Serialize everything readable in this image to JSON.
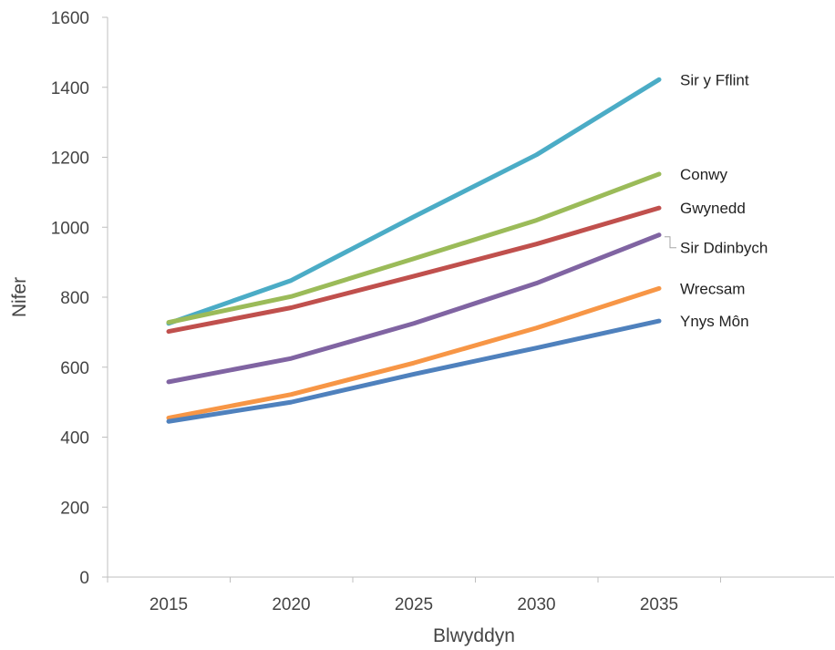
{
  "chart_data": {
    "type": "line",
    "title": "",
    "xlabel": "Blwyddyn",
    "ylabel": "Nifer",
    "x": [
      2015,
      2020,
      2025,
      2030,
      2035
    ],
    "x_ticks": [
      "2015",
      "2020",
      "2025",
      "2030",
      "2035"
    ],
    "y_ticks": [
      "0",
      "200",
      "400",
      "600",
      "800",
      "1000",
      "1200",
      "1400",
      "1600"
    ],
    "ylim": [
      0,
      1600
    ],
    "grid": false,
    "legend": "inline labels at right end of lines",
    "series": [
      {
        "name": "Sir y Fflint",
        "color": "#4BACC6",
        "values": [
          725,
          848,
          1030,
          1207,
          1422
        ]
      },
      {
        "name": "Conwy",
        "color": "#9BBB59",
        "values": [
          728,
          802,
          910,
          1020,
          1152
        ]
      },
      {
        "name": "Gwynedd",
        "color": "#C0504D",
        "values": [
          702,
          770,
          860,
          952,
          1055
        ]
      },
      {
        "name": "Sir Ddinbych",
        "color": "#8064A2",
        "values": [
          558,
          625,
          725,
          840,
          978
        ]
      },
      {
        "name": "Wrecsam",
        "color": "#F79646",
        "values": [
          455,
          522,
          612,
          712,
          825
        ]
      },
      {
        "name": "Ynys Môn",
        "color": "#4F81BD",
        "values": [
          445,
          500,
          580,
          655,
          732
        ]
      }
    ]
  }
}
